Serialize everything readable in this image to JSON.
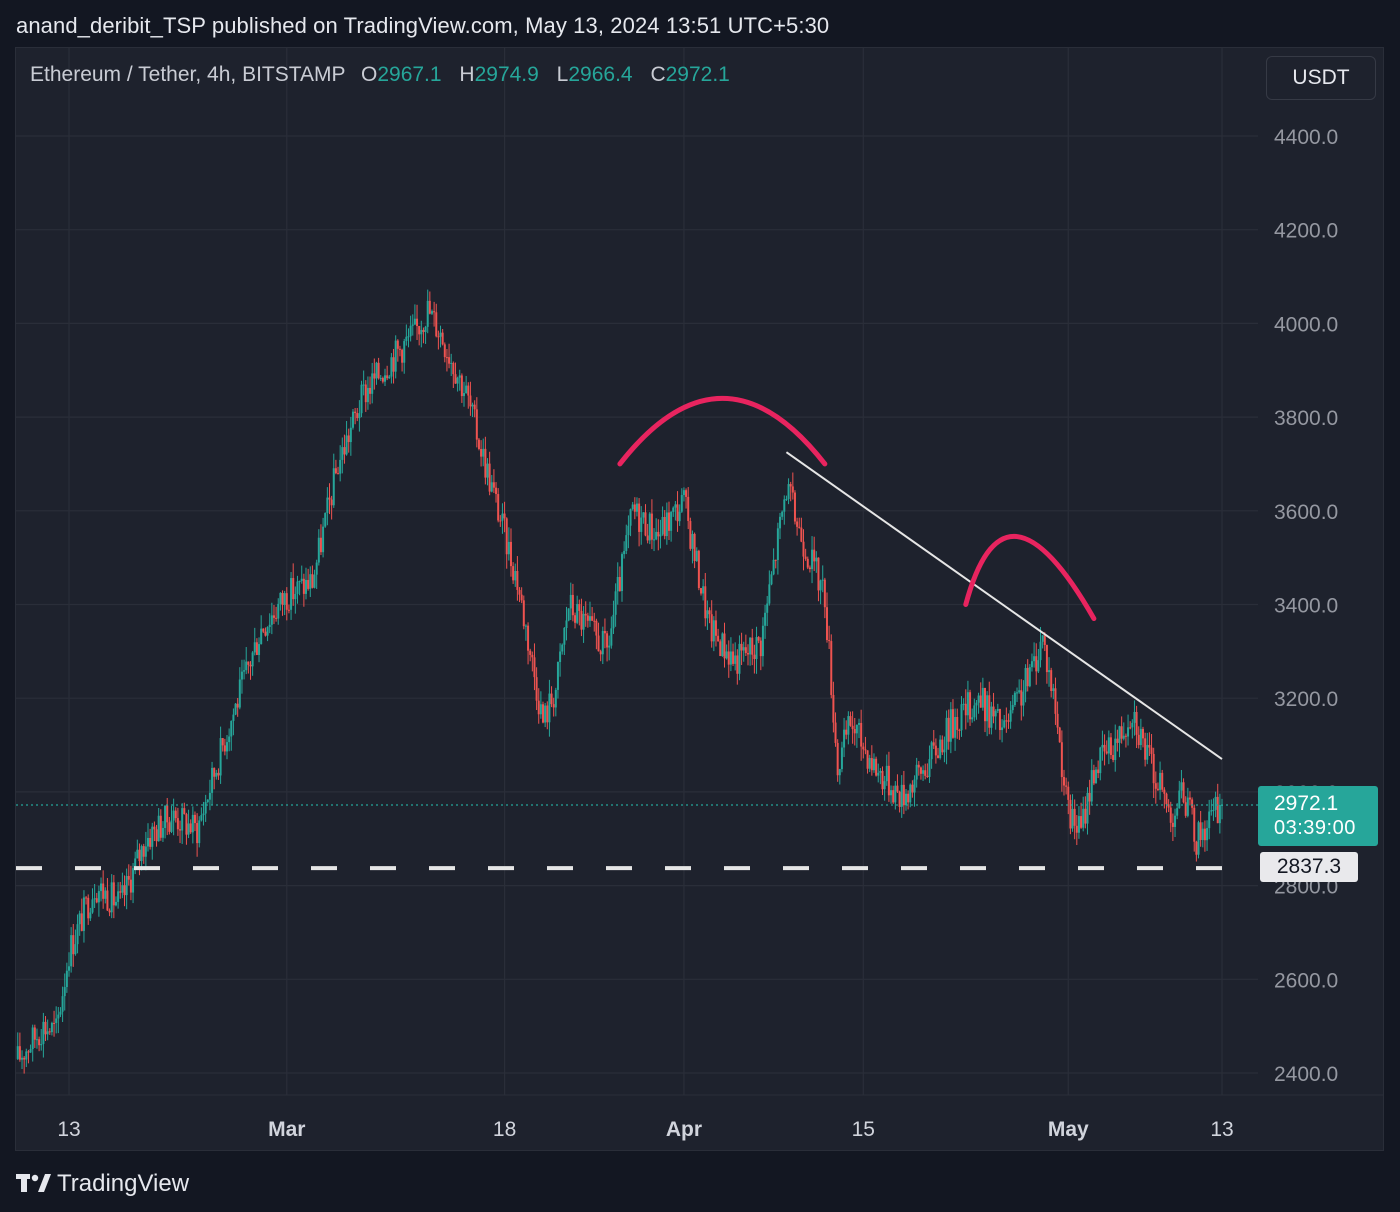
{
  "header": {
    "publisher_line": "anand_deribit_TSP published on TradingView.com, May 13, 2024 13:51 UTC+5:30"
  },
  "legend": {
    "symbol": "Ethereum / Tether, 4h, BITSTAMP",
    "open_label": "O",
    "open": "2967.1",
    "high_label": "H",
    "high": "2974.9",
    "low_label": "L",
    "low": "2966.4",
    "close_label": "C",
    "close": "2972.1"
  },
  "currency_button": "USDT",
  "footer": {
    "brand": "TradingView"
  },
  "price_tag": {
    "price": "2972.1",
    "countdown": "03:39:00"
  },
  "support_tag": "2837.3",
  "colors": {
    "background": "#1e222d",
    "up": "#26a69a",
    "down": "#ef5350",
    "annotation_arc": "#e8245f",
    "trendline": "#e6e6e6",
    "support_line": "#e6e6e6"
  },
  "chart_data": {
    "type": "candlestick",
    "interval": "4h",
    "x_axis": {
      "tick_labels": [
        "13",
        "Mar",
        "18",
        "Apr",
        "15",
        "May",
        "13"
      ],
      "tick_dates": [
        "2024-02-13",
        "2024-03-01",
        "2024-03-18",
        "2024-04-01",
        "2024-04-15",
        "2024-05-01",
        "2024-05-13"
      ]
    },
    "y_axis": {
      "ylim": [
        2360,
        4560
      ],
      "ticks": [
        2400,
        2600,
        2800,
        3000,
        3200,
        3400,
        3600,
        3800,
        4000,
        4200,
        4400
      ],
      "tick_labels": [
        "2400.0",
        "2600.0",
        "2800.0",
        "3000.0",
        "3200.0",
        "3400.0",
        "3600.0",
        "3800.0",
        "4000.0",
        "4200.0",
        "4400.0"
      ],
      "side": "right"
    },
    "grid": true,
    "price_path": [
      [
        "2024-02-09",
        2430
      ],
      [
        "2024-02-11",
        2500
      ],
      [
        "2024-02-12",
        2490
      ],
      [
        "2024-02-13",
        2660
      ],
      [
        "2024-02-15",
        2800
      ],
      [
        "2024-02-17",
        2760
      ],
      [
        "2024-02-19",
        2900
      ],
      [
        "2024-02-21",
        2950
      ],
      [
        "2024-02-23",
        2920
      ],
      [
        "2024-02-25",
        3100
      ],
      [
        "2024-02-28",
        3350
      ],
      [
        "2024-03-01",
        3420
      ],
      [
        "2024-03-03",
        3450
      ],
      [
        "2024-03-05",
        3700
      ],
      [
        "2024-03-07",
        3850
      ],
      [
        "2024-03-09",
        3920
      ],
      [
        "2024-03-11",
        3980
      ],
      [
        "2024-03-12",
        4030
      ],
      [
        "2024-03-13",
        3980
      ],
      [
        "2024-03-15",
        3850
      ],
      [
        "2024-03-17",
        3650
      ],
      [
        "2024-03-19",
        3450
      ],
      [
        "2024-03-21",
        3150
      ],
      [
        "2024-03-22",
        3220
      ],
      [
        "2024-03-23",
        3400
      ],
      [
        "2024-03-26",
        3300
      ],
      [
        "2024-03-28",
        3600
      ],
      [
        "2024-03-30",
        3550
      ],
      [
        "2024-04-01",
        3620
      ],
      [
        "2024-04-03",
        3350
      ],
      [
        "2024-04-05",
        3280
      ],
      [
        "2024-04-07",
        3320
      ],
      [
        "2024-04-09",
        3650
      ],
      [
        "2024-04-10",
        3560
      ],
      [
        "2024-04-12",
        3420
      ],
      [
        "2024-04-13",
        3050
      ],
      [
        "2024-04-14",
        3150
      ],
      [
        "2024-04-16",
        3050
      ],
      [
        "2024-04-18",
        2990
      ],
      [
        "2024-04-20",
        3060
      ],
      [
        "2024-04-22",
        3150
      ],
      [
        "2024-04-24",
        3200
      ],
      [
        "2024-04-26",
        3130
      ],
      [
        "2024-04-28",
        3250
      ],
      [
        "2024-04-29",
        3330
      ],
      [
        "2024-04-30",
        3180
      ],
      [
        "2024-05-01",
        2950
      ],
      [
        "2024-05-02",
        2920
      ],
      [
        "2024-05-03",
        3050
      ],
      [
        "2024-05-05",
        3120
      ],
      [
        "2024-05-06",
        3180
      ],
      [
        "2024-05-07",
        3090
      ],
      [
        "2024-05-09",
        2950
      ],
      [
        "2024-05-10",
        3000
      ],
      [
        "2024-05-11",
        2900
      ],
      [
        "2024-05-12",
        2940
      ],
      [
        "2024-05-13",
        2972.1
      ]
    ],
    "last_price": 2972.1,
    "last_price_countdown": "03:39:00",
    "annotations": {
      "support_level": 2837.3,
      "descending_trendline": [
        [
          "2024-04-09",
          3725
        ],
        [
          "2024-05-13",
          3070
        ]
      ],
      "arcs": [
        {
          "from": [
            "2024-03-27",
            3700
          ],
          "peak": [
            "2024-04-04",
            3840
          ],
          "to": [
            "2024-04-12",
            3700
          ]
        },
        {
          "from": [
            "2024-04-23",
            3400
          ],
          "peak": [
            "2024-04-27",
            3545
          ],
          "to": [
            "2024-05-03",
            3370
          ]
        }
      ]
    }
  }
}
